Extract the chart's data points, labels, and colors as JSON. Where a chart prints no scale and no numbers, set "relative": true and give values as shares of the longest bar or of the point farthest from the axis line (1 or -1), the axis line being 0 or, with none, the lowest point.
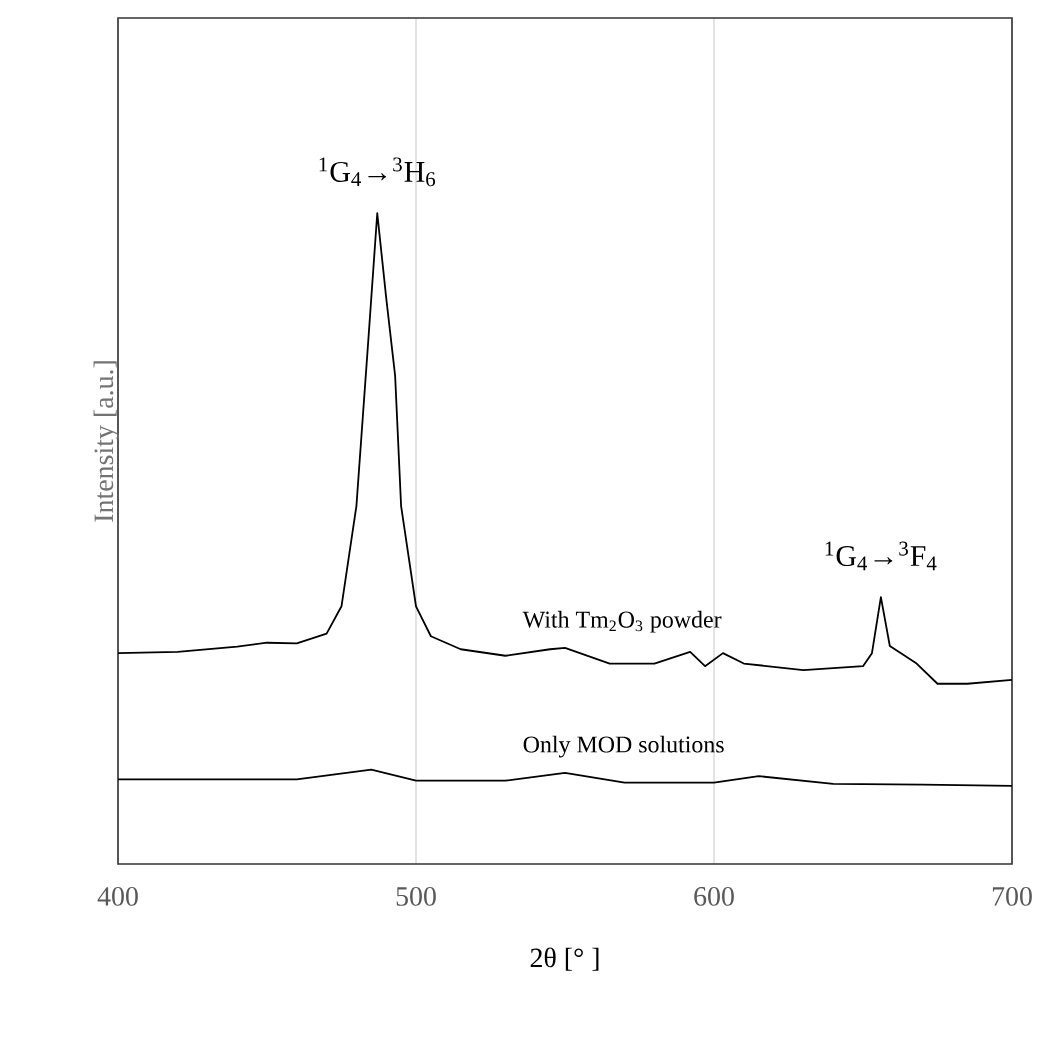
{
  "chart_data": {
    "type": "line",
    "xlabel": "2θ [°  ]",
    "ylabel": "Intensity [a.u.]",
    "relative": true,
    "xlim": [
      400,
      700
    ],
    "xticks": [
      400,
      500,
      600,
      700
    ],
    "grid": "x",
    "line_style": "solid",
    "marker": "none",
    "series": [
      {
        "name": "With Tm$_{2}$O$_{3}$ powder",
        "color": "#000000",
        "x": [
          400,
          420,
          440,
          450,
          460,
          470,
          475,
          480,
          484,
          487,
          490,
          493,
          495,
          500,
          505,
          515,
          530,
          545,
          550,
          565,
          580,
          592,
          597,
          603,
          610,
          630,
          650,
          653,
          656,
          659,
          663,
          668,
          675,
          685,
          700
        ],
        "values": [
          0.324,
          0.326,
          0.334,
          0.34,
          0.339,
          0.354,
          0.396,
          0.55,
          0.805,
          1.0,
          0.87,
          0.75,
          0.55,
          0.396,
          0.35,
          0.33,
          0.32,
          0.33,
          0.332,
          0.308,
          0.308,
          0.326,
          0.304,
          0.324,
          0.308,
          0.298,
          0.304,
          0.324,
          0.41,
          0.335,
          0.323,
          0.308,
          0.277,
          0.277,
          0.283
        ]
      },
      {
        "name": "Only MOD solutions",
        "color": "#000000",
        "x": [
          400,
          430,
          460,
          485,
          500,
          530,
          550,
          570,
          600,
          615,
          640,
          670,
          700
        ],
        "values": [
          0.13,
          0.13,
          0.13,
          0.145,
          0.128,
          0.128,
          0.14,
          0.125,
          0.125,
          0.135,
          0.123,
          0.122,
          0.12
        ]
      }
    ],
    "annotations": [
      {
        "text": "$^{1}$G$_{4}$→$^{3}$H$_{6}$",
        "x": 487,
        "y": 1.0
      },
      {
        "text": "$^{1}$G$_{4}$→$^{3}$F$_{4}$",
        "x": 656,
        "y": 0.41
      }
    ]
  }
}
